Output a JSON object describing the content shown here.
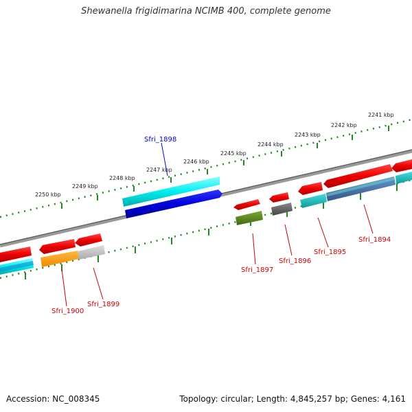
{
  "title": "Shewanella frigidimarina NCIMB 400, complete genome",
  "footer": {
    "accession": "Accession: NC_008345",
    "summary": "Topology: circular; Length: 4,845,257 bp; Genes: 4,161"
  },
  "scale_labels": [
    "2250 kbp",
    "2249 kbp",
    "2248 kbp",
    "2247 kbp",
    "2246 kbp",
    "2245 kbp",
    "2244 kbp",
    "2243 kbp",
    "2242 kbp",
    "2241 kbp"
  ],
  "gene_labels": {
    "sfri_1898": "Sfri_1898",
    "sfri_1897": "Sfri_1897",
    "sfri_1896": "Sfri_1896",
    "sfri_1895": "Sfri_1895",
    "sfri_1894": "Sfri_1894",
    "sfri_1899": "Sfri_1899",
    "sfri_1900": "Sfri_1900"
  },
  "colors": {
    "red": "#ee0000",
    "cyan": "#00dddd",
    "blue": "#0000dd",
    "olive": "#558822",
    "gray": "#666666",
    "orange": "#ff9900",
    "light_gray": "#bbbbbb",
    "teal": "#22bbbb",
    "steel": "#4477aa",
    "tick_green": "#228822",
    "label_red": "#cc0000",
    "label_blue": "#0000cc"
  }
}
